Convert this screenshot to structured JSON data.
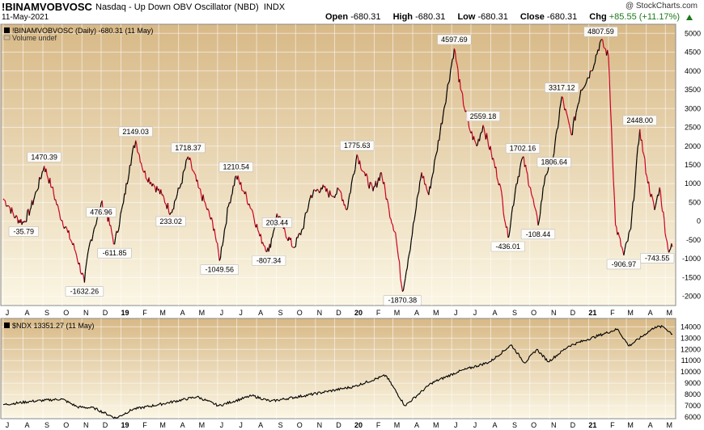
{
  "header": {
    "symbol": "!BINAMVOBVOSC",
    "description": "Nasdaq - Up Down OBV Oscillator (NBD)",
    "exchange": "INDX",
    "date": "11-May-2021",
    "credit": "@ StockCharts.com",
    "open_label": "Open",
    "open": "-680.31",
    "high_label": "High",
    "high": "-680.31",
    "low_label": "Low",
    "low": "-680.31",
    "close_label": "Close",
    "close": "-680.31",
    "chg_label": "Chg",
    "chg": "+85.55 (+11.17%)"
  },
  "colors": {
    "up": "#000000",
    "down": "#cc0022",
    "ndx_line": "#000000",
    "bg_top": "#d8b987",
    "bg_bottom": "#fbf6e4",
    "chg_up": "#1a7a1a"
  },
  "chart_data": [
    {
      "type": "line",
      "legend": "!BINAMVOBVOSC (Daily) -680.31 (11 May)",
      "legend2": "Volume undef",
      "ylim": [
        -2200,
        5200
      ],
      "yticks": [
        -2000,
        -1500,
        -1000,
        -500,
        0,
        500,
        1000,
        1500,
        2000,
        2500,
        3000,
        3500,
        4000,
        4500,
        5000
      ],
      "x_labels": [
        "J",
        "A",
        "S",
        "O",
        "N",
        "D",
        "19",
        "F",
        "M",
        "A",
        "M",
        "J",
        "J",
        "A",
        "S",
        "O",
        "N",
        "D",
        "20",
        "F",
        "M",
        "A",
        "M",
        "J",
        "J",
        "A",
        "S",
        "O",
        "N",
        "D",
        "21",
        "F",
        "M",
        "A",
        "M"
      ],
      "x_labels_bold": [
        "19",
        "20",
        "21"
      ],
      "start": "2018-07-01",
      "end": "2021-05-12",
      "points": [
        [
          "2018-07-01",
          600
        ],
        [
          "2018-07-10",
          400
        ],
        [
          "2018-07-20",
          100
        ],
        [
          "2018-08-02",
          -35.79
        ],
        [
          "2018-08-12",
          300
        ],
        [
          "2018-08-22",
          800
        ],
        [
          "2018-09-03",
          1470.39
        ],
        [
          "2018-09-15",
          900
        ],
        [
          "2018-09-27",
          200
        ],
        [
          "2018-10-10",
          -300
        ],
        [
          "2018-10-22",
          -800
        ],
        [
          "2018-11-05",
          -1632.26
        ],
        [
          "2018-11-12",
          -700
        ],
        [
          "2018-11-20",
          -200
        ],
        [
          "2018-12-01",
          476.96
        ],
        [
          "2018-12-10",
          200
        ],
        [
          "2018-12-22",
          -611.85
        ],
        [
          "2019-01-05",
          500
        ],
        [
          "2019-01-15",
          1500
        ],
        [
          "2019-01-24",
          2149.03
        ],
        [
          "2019-02-06",
          1300
        ],
        [
          "2019-02-20",
          1000
        ],
        [
          "2019-03-06",
          700
        ],
        [
          "2019-03-20",
          233.02
        ],
        [
          "2019-04-05",
          1000
        ],
        [
          "2019-04-16",
          1718.37
        ],
        [
          "2019-05-02",
          900
        ],
        [
          "2019-05-14",
          400
        ],
        [
          "2019-05-27",
          -200
        ],
        [
          "2019-06-04",
          -1049.56
        ],
        [
          "2019-06-18",
          400
        ],
        [
          "2019-06-30",
          1210.54
        ],
        [
          "2019-07-12",
          800
        ],
        [
          "2019-07-25",
          300
        ],
        [
          "2019-08-06",
          -400
        ],
        [
          "2019-08-20",
          -807.34
        ],
        [
          "2019-09-02",
          203.44
        ],
        [
          "2019-09-12",
          -200
        ],
        [
          "2019-09-28",
          -700
        ],
        [
          "2019-10-12",
          -200
        ],
        [
          "2019-10-25",
          700
        ],
        [
          "2019-11-10",
          900
        ],
        [
          "2019-11-25",
          700
        ],
        [
          "2019-12-10",
          800
        ],
        [
          "2019-12-20",
          300
        ],
        [
          "2020-01-05",
          1775.63
        ],
        [
          "2020-01-18",
          1200
        ],
        [
          "2020-01-30",
          800
        ],
        [
          "2020-02-12",
          1300
        ],
        [
          "2020-02-24",
          300
        ],
        [
          "2020-03-05",
          -300
        ],
        [
          "2020-03-16",
          -1870.38
        ],
        [
          "2020-03-25",
          -1000
        ],
        [
          "2020-04-05",
          200
        ],
        [
          "2020-04-15",
          1300
        ],
        [
          "2020-04-26",
          700
        ],
        [
          "2020-05-08",
          1800
        ],
        [
          "2020-05-20",
          3000
        ],
        [
          "2020-06-05",
          4597.69
        ],
        [
          "2020-06-15",
          3500
        ],
        [
          "2020-06-28",
          2500
        ],
        [
          "2020-07-10",
          2000
        ],
        [
          "2020-07-20",
          2559.18
        ],
        [
          "2020-08-02",
          1800
        ],
        [
          "2020-08-15",
          1000
        ],
        [
          "2020-08-28",
          -436.01
        ],
        [
          "2020-09-10",
          1000
        ],
        [
          "2020-09-20",
          1702.16
        ],
        [
          "2020-10-02",
          900
        ],
        [
          "2020-10-14",
          -108.44
        ],
        [
          "2020-10-25",
          1200
        ],
        [
          "2020-11-08",
          1806.64
        ],
        [
          "2020-11-20",
          3317.12
        ],
        [
          "2020-12-05",
          2300
        ],
        [
          "2020-12-20",
          3500
        ],
        [
          "2021-01-05",
          4000
        ],
        [
          "2021-01-20",
          4807.59
        ],
        [
          "2021-02-01",
          4400
        ],
        [
          "2021-02-12",
          -100
        ],
        [
          "2021-02-25",
          -906.97
        ],
        [
          "2021-03-08",
          -200
        ],
        [
          "2021-03-22",
          2448.0
        ],
        [
          "2021-04-02",
          1200
        ],
        [
          "2021-04-14",
          300
        ],
        [
          "2021-04-22",
          900
        ],
        [
          "2021-05-05",
          -743.55
        ],
        [
          "2021-05-12",
          -680.31
        ]
      ],
      "annotations": [
        {
          "date": "2018-08-02",
          "value": -35.79,
          "text": "-35.79"
        },
        {
          "date": "2018-09-03",
          "value": 1470.39,
          "text": "1470.39"
        },
        {
          "date": "2018-11-05",
          "value": -1632.26,
          "text": "-1632.26"
        },
        {
          "date": "2018-12-01",
          "value": 476.96,
          "text": "476.96"
        },
        {
          "date": "2018-12-22",
          "value": -611.85,
          "text": "-611.85"
        },
        {
          "date": "2019-01-24",
          "value": 2149.03,
          "text": "2149.03"
        },
        {
          "date": "2019-03-20",
          "value": 233.02,
          "text": "233.02"
        },
        {
          "date": "2019-04-16",
          "value": 1718.37,
          "text": "1718.37"
        },
        {
          "date": "2019-06-04",
          "value": -1049.56,
          "text": "-1049.56"
        },
        {
          "date": "2019-06-30",
          "value": 1210.54,
          "text": "1210.54"
        },
        {
          "date": "2019-08-20",
          "value": -807.34,
          "text": "-807.34"
        },
        {
          "date": "2019-09-02",
          "value": 203.44,
          "text": "203.44"
        },
        {
          "date": "2020-01-05",
          "value": 1775.63,
          "text": "1775.63"
        },
        {
          "date": "2020-03-16",
          "value": -1870.38,
          "text": "-1870.38"
        },
        {
          "date": "2020-06-05",
          "value": 4597.69,
          "text": "4597.69"
        },
        {
          "date": "2020-07-20",
          "value": 2559.18,
          "text": "2559.18"
        },
        {
          "date": "2020-08-28",
          "value": -436.01,
          "text": "-436.01"
        },
        {
          "date": "2020-09-20",
          "value": 1702.16,
          "text": "1702.16"
        },
        {
          "date": "2020-10-14",
          "value": -108.44,
          "text": "-108.44"
        },
        {
          "date": "2020-11-08",
          "value": 1806.64,
          "text": "1806.64"
        },
        {
          "date": "2020-11-20",
          "value": 3317.12,
          "text": "3317.12"
        },
        {
          "date": "2021-01-20",
          "value": 4807.59,
          "text": "4807.59"
        },
        {
          "date": "2021-02-25",
          "value": -906.97,
          "text": "-906.97"
        },
        {
          "date": "2021-03-22",
          "value": 2448.0,
          "text": "2448.00"
        },
        {
          "date": "2021-05-05",
          "value": -743.55,
          "text": "-743.55"
        }
      ]
    },
    {
      "type": "line",
      "legend": "$NDX 13351.27 (11 May)",
      "ylim": [
        6000,
        14600
      ],
      "yticks": [
        6000,
        7000,
        8000,
        9000,
        10000,
        11000,
        12000,
        13000,
        14000
      ],
      "points": [
        [
          "2018-07-01",
          7100
        ],
        [
          "2018-08-15",
          7400
        ],
        [
          "2018-10-01",
          7600
        ],
        [
          "2018-10-25",
          6900
        ],
        [
          "2018-11-20",
          6800
        ],
        [
          "2018-12-24",
          5900
        ],
        [
          "2019-01-20",
          6700
        ],
        [
          "2019-03-01",
          7100
        ],
        [
          "2019-04-30",
          7800
        ],
        [
          "2019-06-03",
          7000
        ],
        [
          "2019-07-25",
          7900
        ],
        [
          "2019-08-23",
          7400
        ],
        [
          "2019-10-15",
          7900
        ],
        [
          "2019-12-31",
          8700
        ],
        [
          "2020-02-19",
          9700
        ],
        [
          "2020-03-20",
          7000
        ],
        [
          "2020-04-30",
          9000
        ],
        [
          "2020-06-10",
          10000
        ],
        [
          "2020-07-31",
          10900
        ],
        [
          "2020-09-02",
          12400
        ],
        [
          "2020-09-23",
          10800
        ],
        [
          "2020-10-12",
          12000
        ],
        [
          "2020-10-30",
          10900
        ],
        [
          "2020-12-01",
          12300
        ],
        [
          "2020-12-31",
          12900
        ],
        [
          "2021-02-15",
          13800
        ],
        [
          "2021-03-05",
          12300
        ],
        [
          "2021-04-15",
          14000
        ],
        [
          "2021-04-28",
          14000
        ],
        [
          "2021-05-12",
          13351.27
        ]
      ]
    }
  ]
}
